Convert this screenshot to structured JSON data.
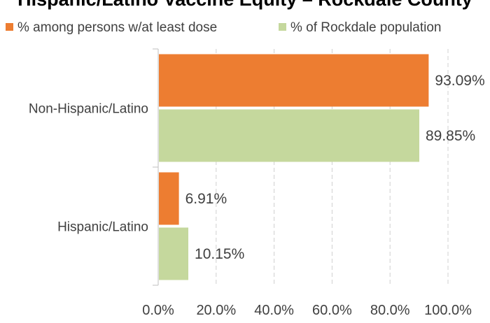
{
  "chart_data": {
    "type": "bar",
    "orientation": "horizontal",
    "title": "Hispanic/Latino Vaccine Equity – Rockdale County",
    "categories": [
      "Non-Hispanic/Latino",
      "Hispanic/Latino"
    ],
    "series": [
      {
        "name": "% among persons w/at least dose",
        "color": "#ED7D31",
        "values": [
          93.09,
          6.91
        ],
        "labels": [
          "93.09%",
          "6.91%"
        ]
      },
      {
        "name": "% of Rockdale population",
        "color": "#C5D89D",
        "values": [
          89.85,
          10.15
        ],
        "labels": [
          "89.85%",
          "10.15%"
        ]
      }
    ],
    "x_ticks": [
      "0.0%",
      "20.0%",
      "40.0%",
      "60.0%",
      "80.0%",
      "100.0%"
    ],
    "xlim": [
      0,
      100
    ],
    "grid": true,
    "legend_position": "top"
  }
}
